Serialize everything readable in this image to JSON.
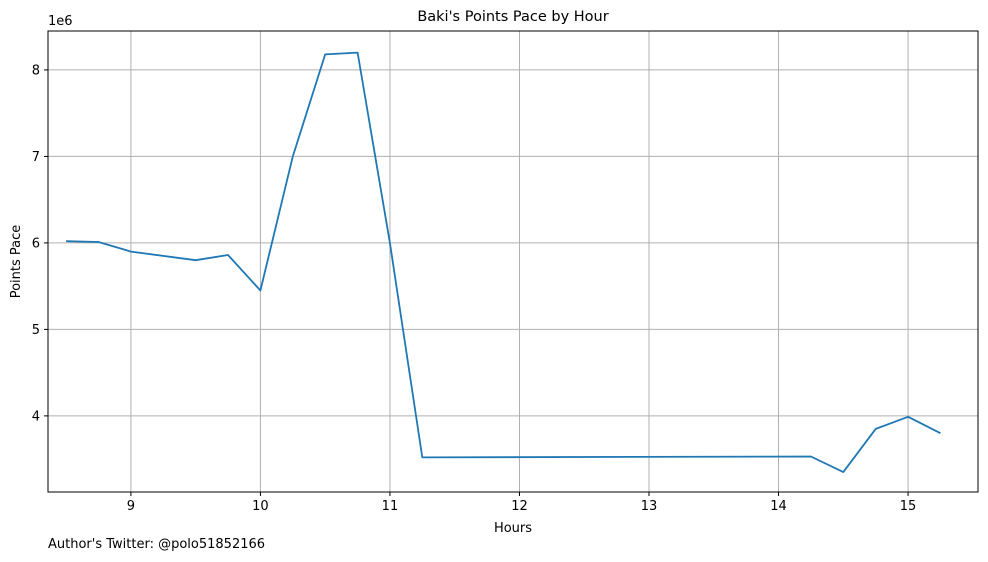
{
  "chart_data": {
    "type": "line",
    "title": "Baki's Points Pace by Hour",
    "xlabel": "Hours",
    "ylabel": "Points Pace",
    "y_offset_label": "1e6",
    "xlim": [
      8.36,
      15.54
    ],
    "ylim": [
      3.12,
      8.45
    ],
    "x_ticks": [
      9,
      10,
      11,
      12,
      13,
      14,
      15
    ],
    "x_tick_labels": [
      "9",
      "10",
      "11",
      "12",
      "13",
      "14",
      "15"
    ],
    "y_ticks": [
      4,
      5,
      6,
      7,
      8
    ],
    "y_tick_labels": [
      "4",
      "5",
      "6",
      "7",
      "8"
    ],
    "grid": true,
    "series": [
      {
        "color": "#1f77b4",
        "x": [
          8.5,
          8.75,
          9.0,
          9.5,
          9.75,
          10.0,
          10.25,
          10.5,
          10.75,
          11.0,
          11.25,
          14.25,
          14.5,
          14.75,
          15.0,
          15.25
        ],
        "y": [
          6.02,
          6.01,
          5.9,
          5.8,
          5.86,
          5.45,
          7.0,
          8.18,
          8.2,
          6.0,
          3.52,
          3.53,
          3.35,
          3.85,
          3.99,
          3.8
        ]
      }
    ]
  },
  "footer": {
    "text": "Author's Twitter: @polo51852166"
  }
}
